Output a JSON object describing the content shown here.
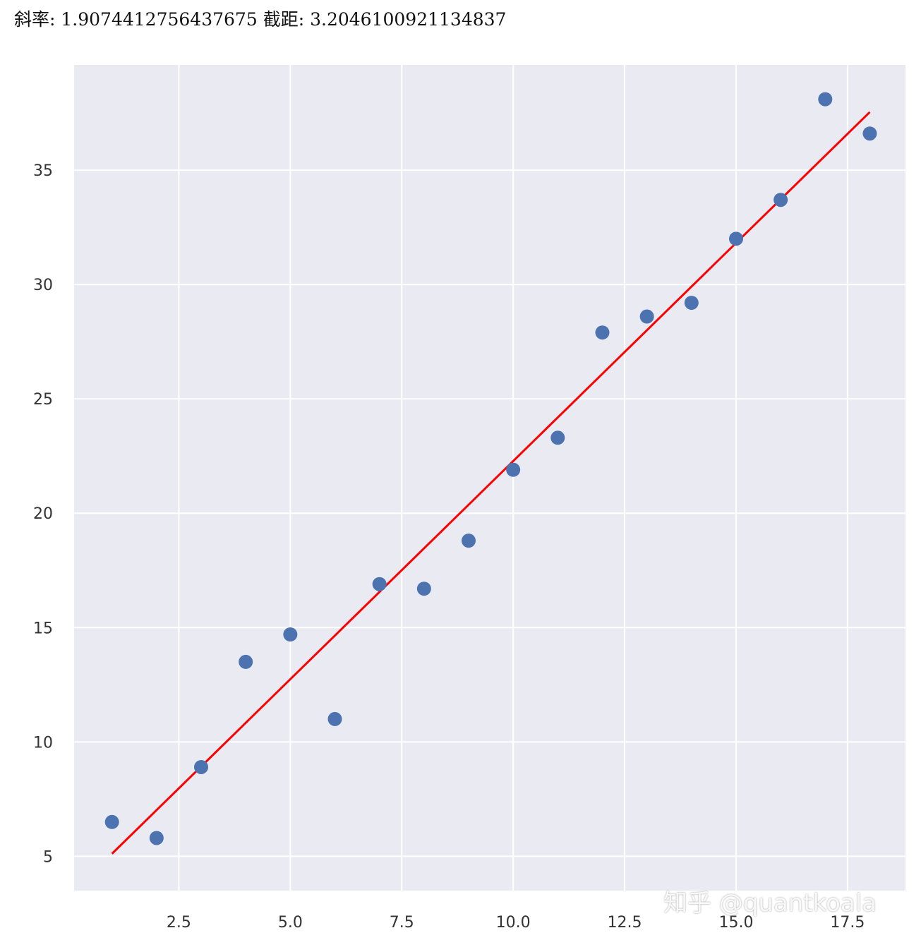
{
  "output_text": {
    "slope_label": "斜率:",
    "slope": "1.9074412756437675",
    "intercept_label": "截距:",
    "intercept": "3.2046100921134837"
  },
  "watermark": "知乎 @quantkoala",
  "chart_data": {
    "type": "scatter",
    "title": "",
    "xlabel": "",
    "ylabel": "",
    "xlim": [
      0.15,
      18.8
    ],
    "ylim": [
      3.5,
      39.6
    ],
    "grid": true,
    "background": "#eaeaf2",
    "xticks": [
      2.5,
      5.0,
      7.5,
      10.0,
      12.5,
      15.0,
      17.5
    ],
    "xtick_labels": [
      "2.5",
      "5.0",
      "7.5",
      "10.0",
      "12.5",
      "15.0",
      "17.5"
    ],
    "yticks": [
      5,
      10,
      15,
      20,
      25,
      30,
      35
    ],
    "ytick_labels": [
      "5",
      "10",
      "15",
      "20",
      "25",
      "30",
      "35"
    ],
    "points": {
      "color": "#4c72b0",
      "x": [
        1,
        2,
        3,
        4,
        5,
        6,
        7,
        8,
        9,
        10,
        11,
        12,
        13,
        14,
        15,
        16,
        17,
        18
      ],
      "y": [
        6.5,
        5.8,
        8.9,
        13.5,
        14.7,
        11.0,
        16.9,
        16.7,
        18.8,
        21.9,
        23.3,
        27.9,
        28.6,
        29.2,
        32.0,
        33.7,
        38.1,
        36.6
      ]
    },
    "fit_line": {
      "color": "#ff0000",
      "slope": 1.9074412756437675,
      "intercept": 3.2046100921134837,
      "x_range": [
        1,
        18
      ]
    }
  }
}
